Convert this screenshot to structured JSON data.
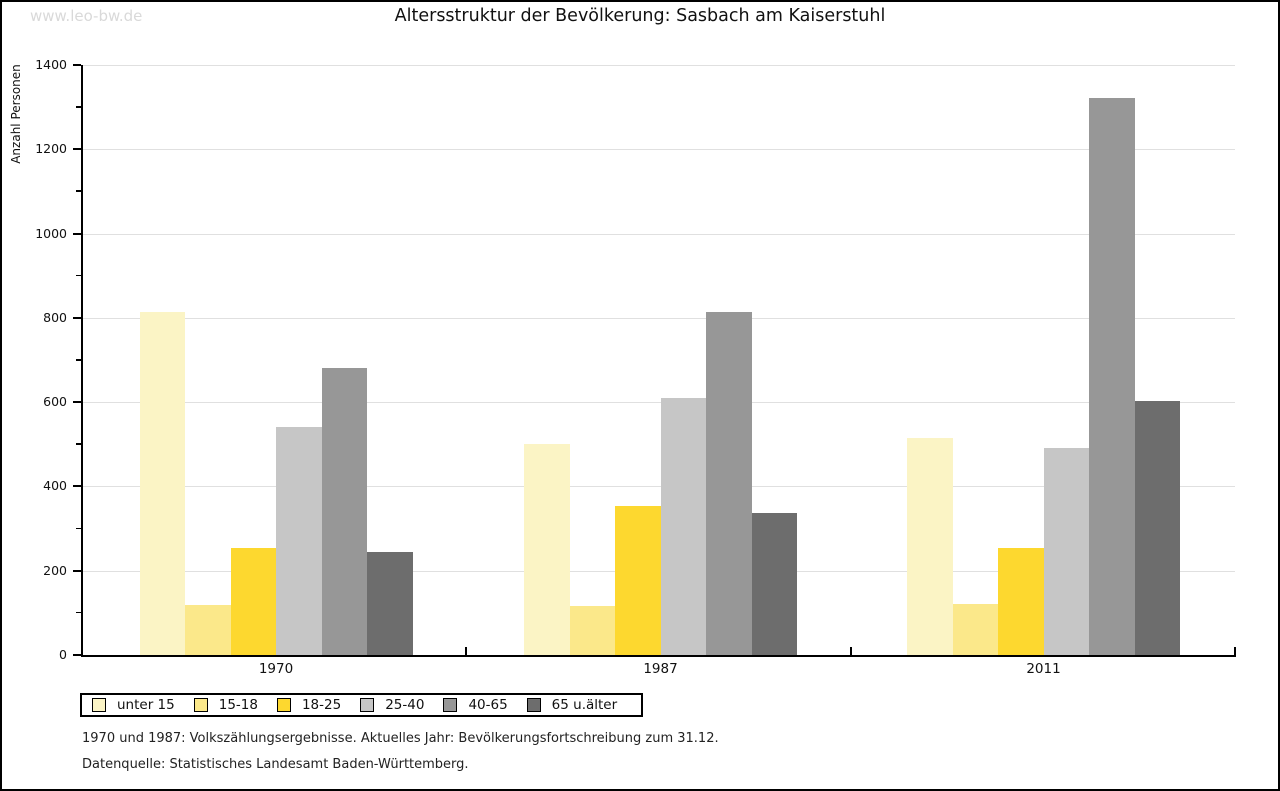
{
  "page": {
    "brand": "www.leo-bw.de",
    "title": "Altersstruktur der Bevölkerung: Sasbach am Kaiserstuhl",
    "footnote_1": "1970 und 1987: Volkszählungsergebnisse. Aktuelles Jahr: Bevölkerungsfortschreibung zum 31.12.",
    "footnote_2": "Datenquelle: Statistisches Landesamt Baden-Württemberg."
  },
  "chart_data": {
    "type": "bar",
    "title": "Altersstruktur der Bevölkerung: Sasbach am Kaiserstuhl",
    "xlabel": "",
    "ylabel": "Anzahl Personen",
    "ylim": [
      0,
      1400
    ],
    "ytick_step": 200,
    "ytick_minor_step": 100,
    "grid": true,
    "legend_position": "bottom",
    "categories": [
      "1970",
      "1987",
      "2011"
    ],
    "series": [
      {
        "name": "unter 15",
        "color": "#fbf4c5",
        "values": [
          815,
          500,
          514
        ]
      },
      {
        "name": "15-18",
        "color": "#fbe88a",
        "values": [
          118,
          117,
          121
        ]
      },
      {
        "name": "18-25",
        "color": "#fdd82f",
        "values": [
          253,
          354,
          253
        ]
      },
      {
        "name": "25-40",
        "color": "#c6c6c6",
        "values": [
          540,
          611,
          491
        ]
      },
      {
        "name": "40-65",
        "color": "#979797",
        "values": [
          680,
          813,
          1322
        ]
      },
      {
        "name": "65 u.älter",
        "color": "#6d6d6d",
        "values": [
          244,
          338,
          602
        ]
      }
    ],
    "colors": {
      "gridline": "#e0e0e0",
      "axis": "#000000",
      "brand_text": "#d9d9d9"
    }
  }
}
